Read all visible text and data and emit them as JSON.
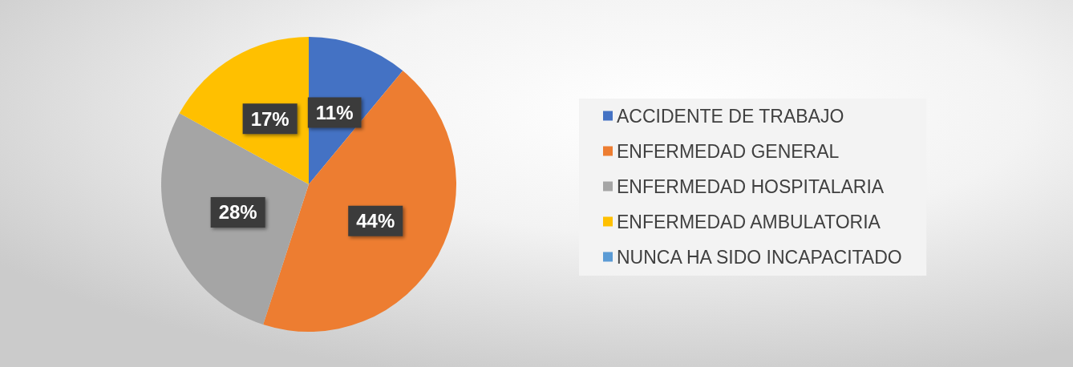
{
  "chart_data": {
    "type": "pie",
    "categories": [
      "ACCIDENTE DE TRABAJO",
      "ENFERMEDAD GENERAL",
      "ENFERMEDAD HOSPITALARIA",
      "ENFERMEDAD AMBULATORIA",
      "NUNCA HA SIDO INCAPACITADO"
    ],
    "values": [
      11,
      44,
      28,
      17,
      0
    ],
    "colors": [
      "#4472c4",
      "#ed7d31",
      "#a5a5a5",
      "#ffc000",
      "#5b9bd5"
    ],
    "value_labels": [
      "11%",
      "44%",
      "28%",
      "17%",
      null
    ],
    "legend": "right"
  }
}
